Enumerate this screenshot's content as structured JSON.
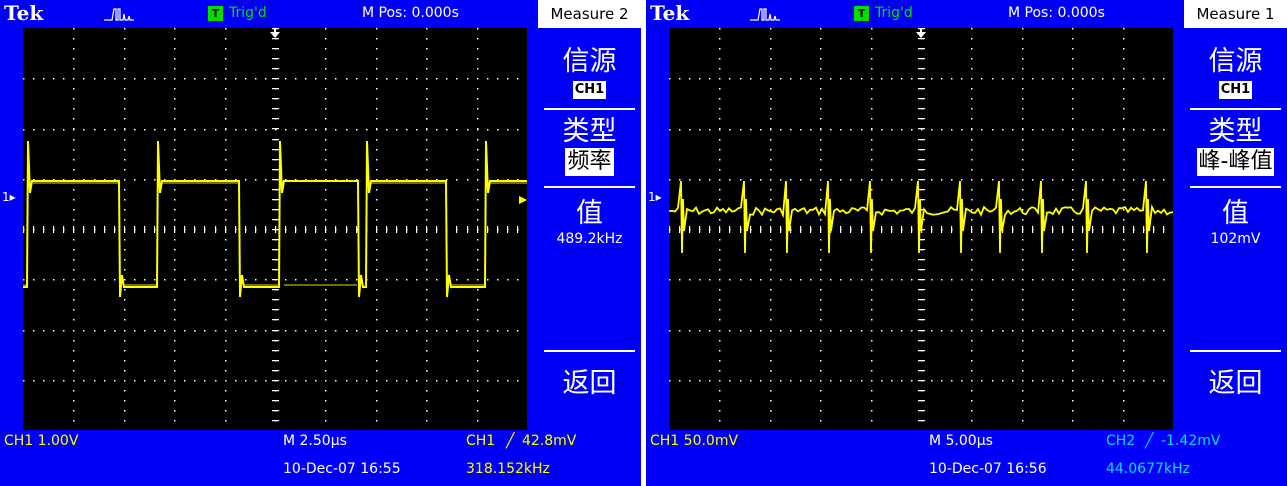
{
  "colors": {
    "background": "#0000f8",
    "graticule": "#000000",
    "trace": "#ffff00",
    "menu_title_bg": "#ffffff"
  },
  "screens": [
    {
      "brand": "Tek",
      "acq_icon": "pulse-acquire-icon",
      "trigger_badge": "T",
      "trigger_status": "Trig'd",
      "m_pos": "M Pos: 0.000s",
      "menu_title": "Measure 2",
      "menu": {
        "source_label": "信源",
        "source_value": "CH1",
        "type_label": "类型",
        "type_value": "频率",
        "value_label": "值",
        "value_text": "489.2kHz",
        "back_label": "返回"
      },
      "channel_marker": "1",
      "status": {
        "ch_scale": "CH1  1.00V",
        "timebase": "M 2.50µs",
        "trigger_source": "CH1",
        "trigger_slope": "╱",
        "trigger_level": "42.8mV",
        "datetime": "10-Dec-07 16:55",
        "trigger_freq": "318.152kHz"
      }
    },
    {
      "brand": "Tek",
      "acq_icon": "pulse-acquire-icon",
      "trigger_badge": "T",
      "trigger_status": "Trig'd",
      "m_pos": "M Pos: 0.000s",
      "menu_title": "Measure 1",
      "menu": {
        "source_label": "信源",
        "source_value": "CH1",
        "type_label": "类型",
        "type_value": "峰-峰值",
        "value_label": "值",
        "value_text": "102mV",
        "back_label": "返回"
      },
      "channel_marker": "1",
      "status": {
        "ch_scale": "CH1  50.0mV",
        "timebase": "M 5.00µs",
        "trigger_source": "CH2",
        "trigger_slope": "╱",
        "trigger_level": "-1.42mV",
        "datetime": "10-Dec-07 16:56",
        "trigger_freq": "44.0677kHz"
      }
    }
  ]
}
